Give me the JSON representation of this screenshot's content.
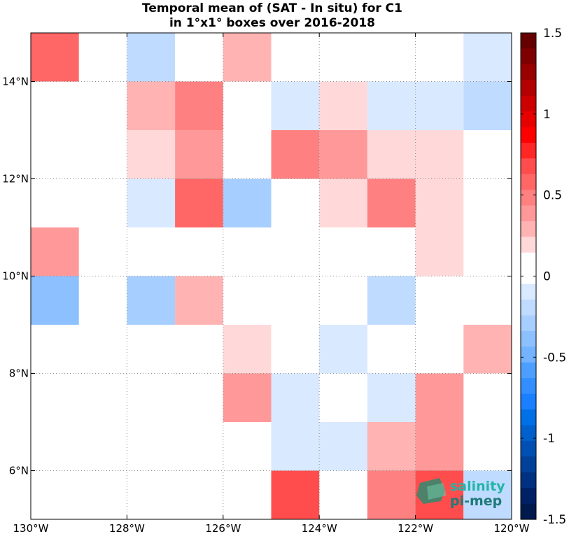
{
  "chart_data": {
    "type": "heatmap",
    "title": [
      "Temporal mean of (SAT - In situ) for C1",
      "in 1°x1° boxes over 2016-2018"
    ],
    "x_range": [
      -130,
      -120
    ],
    "y_range": [
      5,
      15
    ],
    "x_ticks": [
      {
        "value": -130,
        "label": "130°W"
      },
      {
        "value": -128,
        "label": "128°W"
      },
      {
        "value": -126,
        "label": "126°W"
      },
      {
        "value": -124,
        "label": "124°W"
      },
      {
        "value": -122,
        "label": "122°W"
      },
      {
        "value": -120,
        "label": "120°W"
      }
    ],
    "y_ticks": [
      {
        "value": 6,
        "label": "6°N"
      },
      {
        "value": 8,
        "label": "8°N"
      },
      {
        "value": 10,
        "label": "10°N"
      },
      {
        "value": 12,
        "label": "12°N"
      },
      {
        "value": 14,
        "label": "14°N"
      }
    ],
    "grid": true,
    "cells": [
      {
        "lon": -130,
        "lat": 14,
        "value": 0.55
      },
      {
        "lon": -128,
        "lat": 14,
        "value": -0.2
      },
      {
        "lon": -126,
        "lat": 14,
        "value": 0.25
      },
      {
        "lon": -121,
        "lat": 14,
        "value": -0.1
      },
      {
        "lon": -128,
        "lat": 13,
        "value": 0.3
      },
      {
        "lon": -127,
        "lat": 13,
        "value": 0.5
      },
      {
        "lon": -125,
        "lat": 13,
        "value": -0.1
      },
      {
        "lon": -124,
        "lat": 13,
        "value": 0.15
      },
      {
        "lon": -123,
        "lat": 13,
        "value": -0.1
      },
      {
        "lon": -122,
        "lat": 13,
        "value": -0.1
      },
      {
        "lon": -121,
        "lat": 13,
        "value": -0.2
      },
      {
        "lon": -128,
        "lat": 12,
        "value": 0.15
      },
      {
        "lon": -127,
        "lat": 12,
        "value": 0.35
      },
      {
        "lon": -125,
        "lat": 12,
        "value": 0.5
      },
      {
        "lon": -124,
        "lat": 12,
        "value": 0.35
      },
      {
        "lon": -123,
        "lat": 12,
        "value": 0.15
      },
      {
        "lon": -122,
        "lat": 12,
        "value": 0.15
      },
      {
        "lon": -128,
        "lat": 11,
        "value": -0.1
      },
      {
        "lon": -127,
        "lat": 11,
        "value": 0.6
      },
      {
        "lon": -126,
        "lat": 11,
        "value": -0.3
      },
      {
        "lon": -124,
        "lat": 11,
        "value": 0.15
      },
      {
        "lon": -123,
        "lat": 11,
        "value": 0.45
      },
      {
        "lon": -122,
        "lat": 11,
        "value": 0.15
      },
      {
        "lon": -130,
        "lat": 10,
        "value": 0.35
      },
      {
        "lon": -122,
        "lat": 10,
        "value": 0.15
      },
      {
        "lon": -130,
        "lat": 9,
        "value": -0.4
      },
      {
        "lon": -128,
        "lat": 9,
        "value": -0.3
      },
      {
        "lon": -127,
        "lat": 9,
        "value": 0.3
      },
      {
        "lon": -123,
        "lat": 9,
        "value": -0.2
      },
      {
        "lon": -126,
        "lat": 8,
        "value": 0.15
      },
      {
        "lon": -124,
        "lat": 8,
        "value": -0.1
      },
      {
        "lon": -121,
        "lat": 8,
        "value": 0.3
      },
      {
        "lon": -126,
        "lat": 7,
        "value": 0.4
      },
      {
        "lon": -125,
        "lat": 7,
        "value": -0.1
      },
      {
        "lon": -123,
        "lat": 7,
        "value": -0.1
      },
      {
        "lon": -122,
        "lat": 7,
        "value": 0.4
      },
      {
        "lon": -125,
        "lat": 6,
        "value": -0.1
      },
      {
        "lon": -124,
        "lat": 6,
        "value": -0.1
      },
      {
        "lon": -123,
        "lat": 6,
        "value": 0.3
      },
      {
        "lon": -122,
        "lat": 6,
        "value": 0.4
      },
      {
        "lon": -125,
        "lat": 5,
        "value": 0.7
      },
      {
        "lon": -123,
        "lat": 5,
        "value": 0.5
      },
      {
        "lon": -122,
        "lat": 5,
        "value": 0.65
      },
      {
        "lon": -121,
        "lat": 5,
        "value": -0.2
      }
    ],
    "colorbar": {
      "range": [
        -1.5,
        1.5
      ],
      "ticks": [
        {
          "value": 1.5,
          "label": "1.5"
        },
        {
          "value": 1,
          "label": "1"
        },
        {
          "value": 0.5,
          "label": "0.5"
        },
        {
          "value": 0,
          "label": "0"
        },
        {
          "value": -0.5,
          "label": "-0.5"
        },
        {
          "value": -1,
          "label": "-1"
        },
        {
          "value": -1.5,
          "label": "-1.5"
        }
      ],
      "colors_top_to_bottom": [
        "#660000",
        "#7f0000",
        "#990000",
        "#b30000",
        "#cc0000",
        "#e60000",
        "#ff0000",
        "#ff2626",
        "#ff4d4d",
        "#ff6666",
        "#ff8080",
        "#ff9999",
        "#ffb3b3",
        "#ffd9d9",
        "#ffffff",
        "#ffffff",
        "#d9e9ff",
        "#bfdbff",
        "#a6ceff",
        "#8cc0ff",
        "#73b3ff",
        "#4d9fff",
        "#338fff",
        "#1a80ff",
        "#0070e6",
        "#0060cc",
        "#0050b3",
        "#004099",
        "#003080",
        "#002066",
        "#001a4d"
      ]
    }
  },
  "logo": {
    "line1": "salinity",
    "line2": "pi-mep"
  }
}
